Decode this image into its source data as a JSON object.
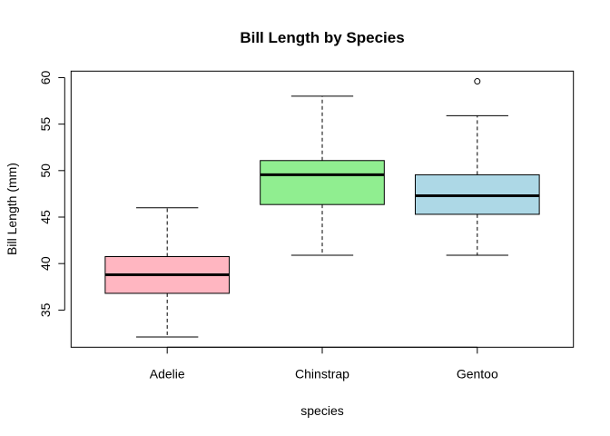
{
  "chart_data": {
    "type": "boxplot",
    "title": "Bill Length by Species",
    "xlabel": "species",
    "ylabel": "Bill Length (mm)",
    "ylim": [
      31.0,
      60.7
    ],
    "yticks": [
      35,
      40,
      45,
      50,
      55,
      60
    ],
    "grid": false,
    "categories": [
      "Adelie",
      "Chinstrap",
      "Gentoo"
    ],
    "boxes": [
      {
        "name": "Adelie",
        "lower_whisker": 32.1,
        "q1": 36.8,
        "median": 38.8,
        "q3": 40.75,
        "upper_whisker": 46.0,
        "outliers": [],
        "color": "#FFB6C1"
      },
      {
        "name": "Chinstrap",
        "lower_whisker": 40.9,
        "q1": 46.35,
        "median": 49.55,
        "q3": 51.08,
        "upper_whisker": 58.0,
        "outliers": [],
        "color": "#90EE90"
      },
      {
        "name": "Gentoo",
        "lower_whisker": 40.9,
        "q1": 45.3,
        "median": 47.3,
        "q3": 49.55,
        "upper_whisker": 55.9,
        "outliers": [
          59.6
        ],
        "color": "#ADD8E6"
      }
    ]
  }
}
